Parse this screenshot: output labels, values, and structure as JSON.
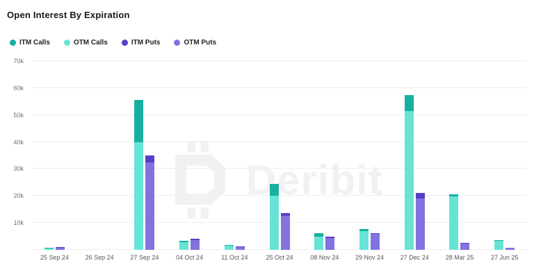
{
  "header": {
    "title": "Open Interest By Expiration"
  },
  "watermark": {
    "brand": "Deribit"
  },
  "chart_data": {
    "type": "bar",
    "stacked": true,
    "title": "Open Interest By Expiration",
    "unit": "k",
    "ylim": [
      0,
      70
    ],
    "grid": "horizontal",
    "legend_position": "top-left",
    "yticks": [
      {
        "label": "70k",
        "value": 70
      },
      {
        "label": "60k",
        "value": 60
      },
      {
        "label": "50k",
        "value": 50
      },
      {
        "label": "40k",
        "value": 40
      },
      {
        "label": "30k",
        "value": 30
      },
      {
        "label": "20k",
        "value": 20
      },
      {
        "label": "10k",
        "value": 10
      }
    ],
    "categories": [
      "25 Sep 24",
      "26 Sep 24",
      "27 Sep 24",
      "04 Oct 24",
      "11 Oct 24",
      "25 Oct 24",
      "08 Nov 24",
      "29 Nov 24",
      "27 Dec 24",
      "28 Mar 25",
      "27 Jun 25"
    ],
    "series": [
      {
        "name": "ITM Calls",
        "stack": "calls",
        "color": "#17b0a0",
        "values": [
          0.05,
          0,
          15.5,
          0.5,
          0.2,
          4.5,
          1.2,
          0.8,
          6.0,
          0.7,
          0.3
        ]
      },
      {
        "name": "OTM Calls",
        "stack": "calls",
        "color": "#67e4d6",
        "values": [
          0.6,
          0,
          40.0,
          2.9,
          1.5,
          20.0,
          5.0,
          7.0,
          51.5,
          19.8,
          3.4
        ]
      },
      {
        "name": "ITM Puts",
        "stack": "puts",
        "color": "#5a3ec8",
        "values": [
          0.1,
          0,
          2.5,
          0.3,
          0.2,
          1.0,
          0.5,
          0.3,
          2.0,
          0.3,
          0.1
        ]
      },
      {
        "name": "OTM Puts",
        "stack": "puts",
        "color": "#8273e0",
        "values": [
          0.9,
          0,
          32.5,
          3.7,
          1.0,
          12.6,
          4.4,
          6.0,
          19.0,
          2.4,
          0.8
        ]
      }
    ],
    "stack_render_order_top_to_bottom": {
      "calls": [
        "ITM Calls",
        "OTM Calls"
      ],
      "puts": [
        "ITM Puts",
        "OTM Puts"
      ]
    }
  }
}
